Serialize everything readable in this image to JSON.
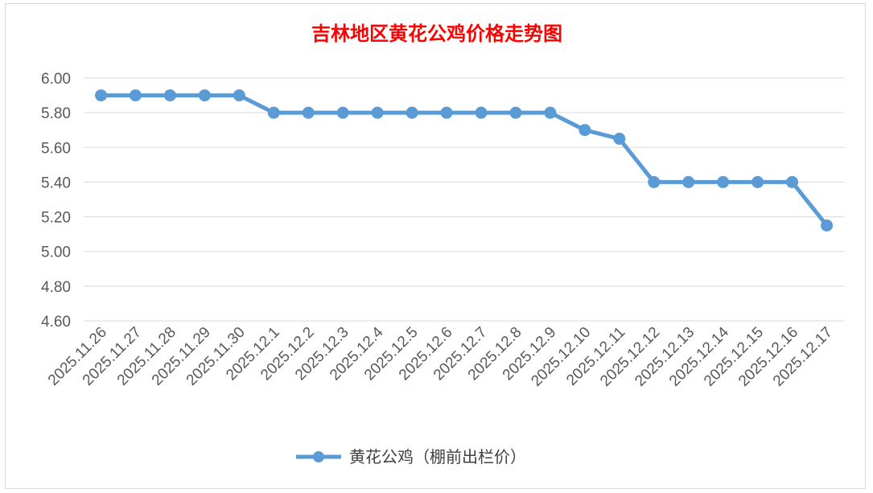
{
  "chart_data": {
    "type": "line",
    "title": "吉林地区黄花公鸡价格走势图",
    "xlabel": "",
    "ylabel": "",
    "ylim": [
      4.6,
      6.0
    ],
    "yticks": [
      "6.00",
      "5.80",
      "5.60",
      "5.40",
      "5.20",
      "5.00",
      "4.80",
      "4.60"
    ],
    "grid": true,
    "legend_position": "bottom",
    "categories": [
      "2025.11.26",
      "2025.11.27",
      "2025.11.28",
      "2025.11.29",
      "2025.11.30",
      "2025.12.1",
      "2025.12.2",
      "2025.12.3",
      "2025.12.4",
      "2025.12.5",
      "2025.12.6",
      "2025.12.7",
      "2025.12.8",
      "2025.12.9",
      "2025.12.10",
      "2025.12.11",
      "2025.12.12",
      "2025.12.13",
      "2025.12.14",
      "2025.12.15",
      "2025.12.16",
      "2025.12.17"
    ],
    "series": [
      {
        "name": "黄花公鸡（棚前出栏价）",
        "color": "#5b9bd5",
        "values": [
          5.9,
          5.9,
          5.9,
          5.9,
          5.9,
          5.8,
          5.8,
          5.8,
          5.8,
          5.8,
          5.8,
          5.8,
          5.8,
          5.8,
          5.7,
          5.65,
          5.4,
          5.4,
          5.4,
          5.4,
          5.4,
          5.15
        ]
      }
    ]
  }
}
